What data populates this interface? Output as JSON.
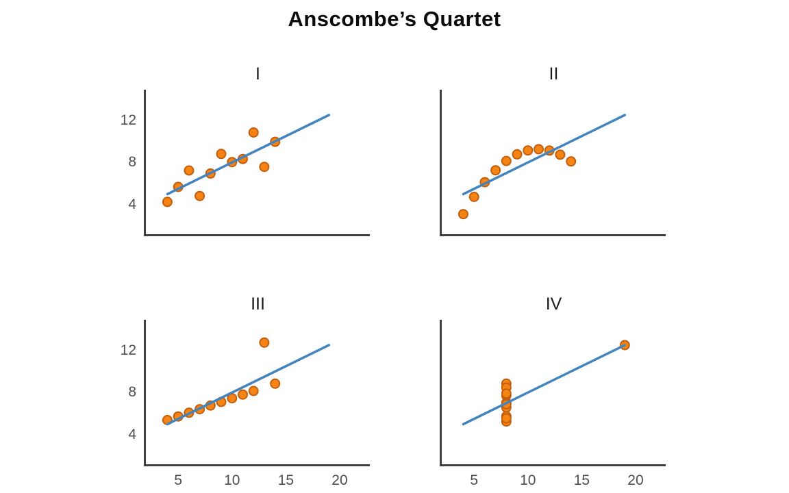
{
  "figure_title": "Anscombe’s Quartet",
  "colors": {
    "point_fill": "#F58414",
    "point_stroke": "#C15E0D",
    "regression_line": "#4384BE",
    "axis": "#3F3F3F",
    "tick_label": "#4D4D4D",
    "title": "#0B0B0B",
    "subplot_title": "#1C1C1C",
    "background": "#FFFFFF"
  },
  "chart_data": {
    "type": "scatter",
    "title": "Anscombe’s Quartet",
    "xlabel": "",
    "ylabel": "",
    "xlim": [
      2.0,
      22.8
    ],
    "ylim": [
      1.2,
      14.9
    ],
    "x_ticks": [
      5,
      10,
      15,
      20
    ],
    "y_ticks": [
      4,
      8,
      12
    ],
    "grid": false,
    "legend": false,
    "regression_line": {
      "x1": 4,
      "y1": 5.0,
      "x2": 19,
      "y2": 12.5
    },
    "subplots": [
      {
        "title": "I",
        "x": [
          10,
          8,
          13,
          9,
          11,
          14,
          6,
          4,
          12,
          7,
          5
        ],
        "y": [
          8.04,
          6.95,
          7.58,
          8.81,
          8.33,
          9.96,
          7.24,
          4.26,
          10.84,
          4.82,
          5.68
        ],
        "show_x_tick_labels": false,
        "show_y_tick_labels": true
      },
      {
        "title": "II",
        "x": [
          10,
          8,
          13,
          9,
          11,
          14,
          6,
          4,
          12,
          7,
          5
        ],
        "y": [
          9.14,
          8.14,
          8.74,
          8.77,
          9.26,
          8.1,
          6.13,
          3.1,
          9.13,
          7.26,
          4.74
        ],
        "show_x_tick_labels": false,
        "show_y_tick_labels": false
      },
      {
        "title": "III",
        "x": [
          10,
          8,
          13,
          9,
          11,
          14,
          6,
          4,
          12,
          7,
          5
        ],
        "y": [
          7.46,
          6.77,
          12.74,
          7.11,
          7.81,
          8.84,
          6.08,
          5.39,
          8.15,
          6.42,
          5.73
        ],
        "show_x_tick_labels": true,
        "show_y_tick_labels": true
      },
      {
        "title": "IV",
        "x": [
          8,
          8,
          8,
          8,
          8,
          8,
          8,
          19,
          8,
          8,
          8
        ],
        "y": [
          6.58,
          5.76,
          7.71,
          8.84,
          8.47,
          7.04,
          5.25,
          12.5,
          5.56,
          7.91,
          6.89
        ],
        "show_x_tick_labels": true,
        "show_y_tick_labels": false
      }
    ]
  }
}
